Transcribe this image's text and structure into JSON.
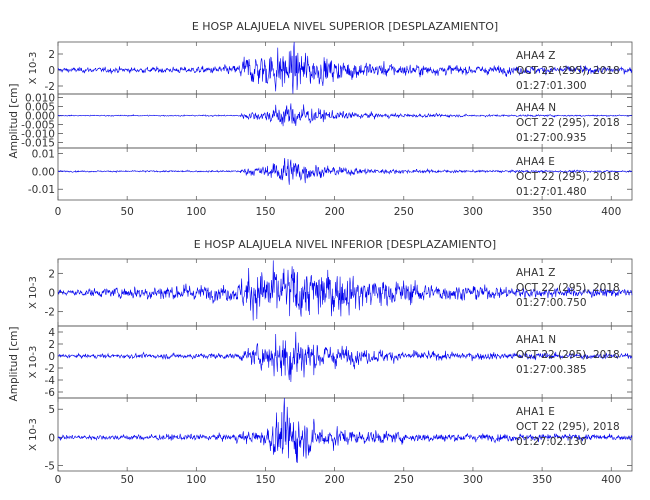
{
  "chart_data": [
    {
      "type": "line",
      "title": "E HOSP ALAJUELA NIVEL SUPERIOR [DESPLAZAMIENTO]",
      "ylabel": "Amplitud [cm]",
      "xlim": [
        0,
        415
      ],
      "xticks": [
        0,
        50,
        100,
        150,
        200,
        250,
        300,
        350,
        400
      ],
      "traces": [
        {
          "station": "AHA4",
          "component": "Z",
          "date": "OCT 22 (295), 2018",
          "time": "01:27:01.300",
          "scale_label": "X 10-3",
          "ylim": [
            -3,
            3.5
          ],
          "yticks": [
            -2,
            0,
            2
          ],
          "yticklabels": [
            "-2",
            "0",
            "2"
          ],
          "color": "#0000ee",
          "envelope": [
            [
              0,
              0.3
            ],
            [
              100,
              0.4
            ],
            [
              130,
              0.6
            ],
            [
              135,
              1.8
            ],
            [
              150,
              2.2
            ],
            [
              160,
              2.8
            ],
            [
              168,
              3.2
            ],
            [
              175,
              2.6
            ],
            [
              185,
              2.0
            ],
            [
              200,
              1.4
            ],
            [
              230,
              0.9
            ],
            [
              280,
              0.6
            ],
            [
              350,
              0.5
            ],
            [
              415,
              0.4
            ]
          ]
        },
        {
          "station": "AHA4",
          "component": "N",
          "date": "OCT 22 (295), 2018",
          "time": "01:27:00.935",
          "scale_label": "",
          "ylim": [
            -0.018,
            0.012
          ],
          "yticks": [
            0.01,
            0.005,
            0.0,
            -0.005,
            -0.01,
            -0.015
          ],
          "yticklabels": [
            "0.010",
            "0.005",
            "0.000",
            "-0.005",
            "-0.010",
            "-0.015"
          ],
          "color": "#0000ee",
          "envelope": [
            [
              0,
              0.0003
            ],
            [
              130,
              0.0004
            ],
            [
              135,
              0.002
            ],
            [
              150,
              0.003
            ],
            [
              158,
              0.006
            ],
            [
              165,
              0.008
            ],
            [
              172,
              0.007
            ],
            [
              185,
              0.004
            ],
            [
              200,
              0.0025
            ],
            [
              240,
              0.0012
            ],
            [
              300,
              0.0006
            ],
            [
              415,
              0.0004
            ]
          ]
        },
        {
          "station": "AHA4",
          "component": "E",
          "date": "OCT 22 (295), 2018",
          "time": "01:27:01.480",
          "scale_label": "",
          "ylim": [
            -0.016,
            0.013
          ],
          "yticks": [
            0.01,
            0.0,
            -0.01
          ],
          "yticklabels": [
            "0.01",
            "0.00",
            "-0.01"
          ],
          "color": "#0000ee",
          "envelope": [
            [
              0,
              0.0004
            ],
            [
              130,
              0.0005
            ],
            [
              135,
              0.002
            ],
            [
              150,
              0.003
            ],
            [
              158,
              0.006
            ],
            [
              165,
              0.009
            ],
            [
              172,
              0.007
            ],
            [
              185,
              0.004
            ],
            [
              200,
              0.0025
            ],
            [
              240,
              0.0012
            ],
            [
              300,
              0.0007
            ],
            [
              415,
              0.0005
            ]
          ]
        }
      ]
    },
    {
      "type": "line",
      "title": "E HOSP ALAJUELA NIVEL INFERIOR [DESPLAZAMIENTO]",
      "ylabel": "Amplitud [cm]",
      "xlim": [
        0,
        415
      ],
      "xticks": [
        0,
        50,
        100,
        150,
        200,
        250,
        300,
        350,
        400
      ],
      "traces": [
        {
          "station": "AHA1",
          "component": "Z",
          "date": "OCT 22 (295), 2018",
          "time": "01:27:00.750",
          "scale_label": "X 10-3",
          "ylim": [
            -3.5,
            3.5
          ],
          "yticks": [
            -2,
            0,
            2
          ],
          "yticklabels": [
            "-2",
            "0",
            "2"
          ],
          "color": "#0000ee",
          "envelope": [
            [
              0,
              0.3
            ],
            [
              40,
              0.5
            ],
            [
              60,
              0.8
            ],
            [
              100,
              0.8
            ],
            [
              130,
              0.9
            ],
            [
              135,
              2.2
            ],
            [
              150,
              2.6
            ],
            [
              165,
              3.2
            ],
            [
              180,
              2.8
            ],
            [
              200,
              2.2
            ],
            [
              240,
              1.4
            ],
            [
              280,
              0.8
            ],
            [
              330,
              0.6
            ],
            [
              415,
              0.4
            ]
          ]
        },
        {
          "station": "AHA1",
          "component": "N",
          "date": "OCT 22 (295), 2018",
          "time": "01:27:00.385",
          "scale_label": "X 10-3",
          "ylim": [
            -7,
            5
          ],
          "yticks": [
            4,
            2,
            0,
            -2,
            -4,
            -6
          ],
          "yticklabels": [
            "4",
            "2",
            "0",
            "-2",
            "-4",
            "-6"
          ],
          "color": "#0000ee",
          "envelope": [
            [
              0,
              0.3
            ],
            [
              130,
              0.5
            ],
            [
              140,
              1.5
            ],
            [
              155,
              2.5
            ],
            [
              162,
              4.5
            ],
            [
              170,
              5.5
            ],
            [
              178,
              3.5
            ],
            [
              190,
              2.2
            ],
            [
              220,
              1.2
            ],
            [
              270,
              0.7
            ],
            [
              415,
              0.4
            ]
          ]
        },
        {
          "station": "AHA1",
          "component": "E",
          "date": "OCT 22 (295), 2018",
          "time": "01:27:02.130",
          "scale_label": "X 10-3",
          "ylim": [
            -6,
            7
          ],
          "yticks": [
            5,
            0,
            -5
          ],
          "yticklabels": [
            "5",
            "0",
            "-5"
          ],
          "color": "#0000ee",
          "envelope": [
            [
              0,
              0.4
            ],
            [
              120,
              0.6
            ],
            [
              150,
              1.5
            ],
            [
              158,
              4.0
            ],
            [
              165,
              5.5
            ],
            [
              172,
              4.5
            ],
            [
              185,
              2.5
            ],
            [
              210,
              1.4
            ],
            [
              260,
              0.8
            ],
            [
              415,
              0.5
            ]
          ]
        }
      ]
    }
  ]
}
